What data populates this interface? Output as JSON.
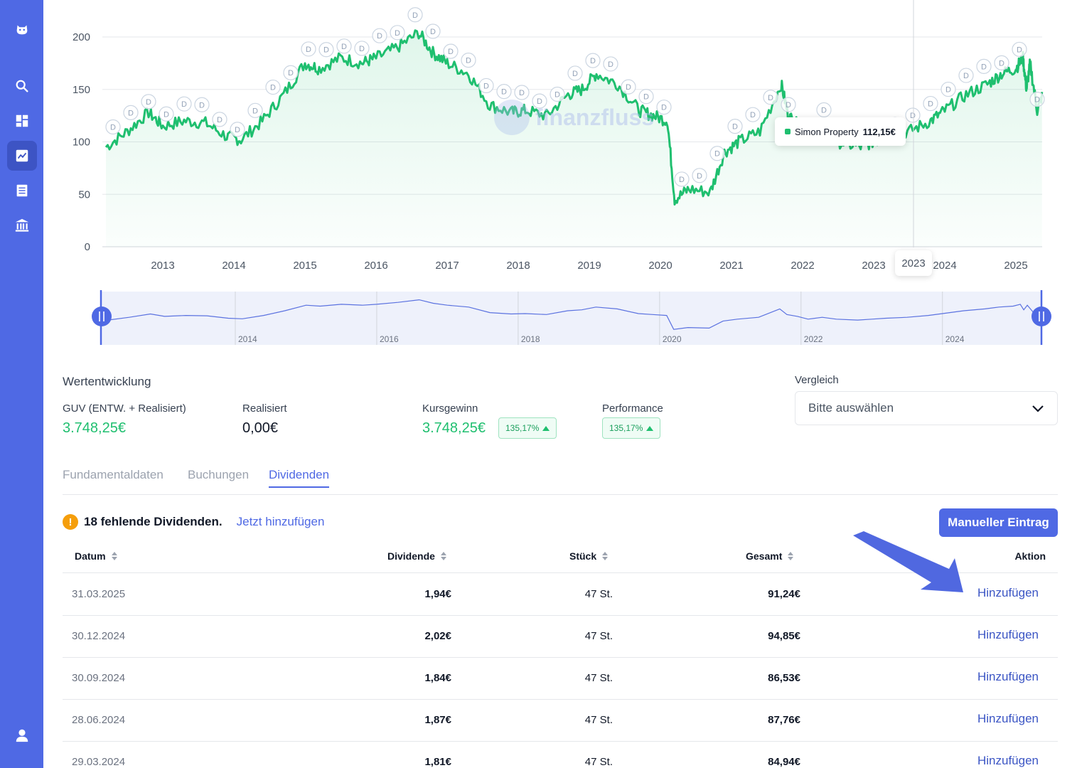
{
  "sidebar": {
    "icons": [
      "logo-icon",
      "search-icon",
      "dashboard-icon",
      "chart-icon",
      "list-icon",
      "bank-icon",
      "user-icon"
    ]
  },
  "chart_data": {
    "type": "line",
    "series": [
      {
        "name": "Simon Property",
        "color": "#1fbf6f"
      }
    ],
    "x": [
      2012.2,
      2012.5,
      2012.8,
      2013.0,
      2013.3,
      2013.6,
      2013.9,
      2014.1,
      2014.4,
      2014.7,
      2015.0,
      2015.2,
      2015.5,
      2015.8,
      2016.0,
      2016.3,
      2016.6,
      2016.8,
      2017.0,
      2017.3,
      2017.6,
      2017.9,
      2018.1,
      2018.4,
      2018.7,
      2018.9,
      2019.1,
      2019.4,
      2019.7,
      2019.9,
      2020.1,
      2020.2,
      2020.4,
      2020.7,
      2020.9,
      2021.1,
      2021.4,
      2021.7,
      2021.8,
      2021.95,
      2022.1,
      2022.3,
      2022.5,
      2022.8,
      2023.0,
      2023.2,
      2023.5,
      2023.8,
      2024.0,
      2024.3,
      2024.6,
      2024.8,
      2025.0,
      2025.1,
      2025.15,
      2025.2,
      2025.3,
      2025.4
    ],
    "values": [
      95,
      110,
      128,
      115,
      120,
      118,
      105,
      102,
      120,
      145,
      175,
      170,
      180,
      175,
      180,
      190,
      204,
      185,
      175,
      165,
      135,
      128,
      130,
      125,
      145,
      150,
      165,
      155,
      130,
      125,
      120,
      45,
      55,
      52,
      90,
      100,
      110,
      155,
      125,
      115,
      100,
      110,
      100,
      95,
      100,
      105,
      110,
      120,
      130,
      145,
      155,
      165,
      170,
      180,
      150,
      175,
      130,
      150
    ],
    "ylim": [
      0,
      210
    ],
    "yticks": [
      "200",
      "150",
      "100",
      "50",
      "0"
    ],
    "xticks": [
      "2013",
      "2014",
      "2015",
      "2016",
      "2017",
      "2018",
      "2019",
      "2020",
      "2021",
      "2022",
      "2023",
      "2024",
      "2025"
    ],
    "hover_x_label": "2023",
    "tooltip": {
      "series": "Simon Property",
      "value": "112,15€"
    },
    "dividend_marker": "D",
    "watermark": "finanzfluss",
    "navigator_ticks": [
      "2014",
      "2016",
      "2018",
      "2020",
      "2022",
      "2024"
    ]
  },
  "summary": {
    "title": "Wertentwicklung",
    "guv_label": "GUV (ENTW. + Realisiert)",
    "guv_value": "3.748,25€",
    "realisiert_label": "Realisiert",
    "realisiert_value": "0,00€",
    "kursgewinn_label": "Kursgewinn",
    "kursgewinn_value": "3.748,25€",
    "kursgewinn_badge": "135,17%",
    "performance_label": "Performance",
    "performance_badge": "135,17%"
  },
  "compare": {
    "label": "Vergleich",
    "placeholder": "Bitte auswählen"
  },
  "tabs": [
    "Fundamentaldaten",
    "Buchungen",
    "Dividenden"
  ],
  "notice": {
    "text": "18 fehlende Dividenden.",
    "link": "Jetzt hinzufügen",
    "button": "Manueller Eintrag"
  },
  "table": {
    "headers": {
      "datum": "Datum",
      "dividende": "Dividende",
      "stueck": "Stück",
      "gesamt": "Gesamt",
      "aktion": "Aktion"
    },
    "rows": [
      {
        "date": "31.03.2025",
        "div": "1,94€",
        "qty": "47 St.",
        "total": "91,24€",
        "action": "Hinzufügen"
      },
      {
        "date": "30.12.2024",
        "div": "2,02€",
        "qty": "47 St.",
        "total": "94,85€",
        "action": "Hinzufügen"
      },
      {
        "date": "30.09.2024",
        "div": "1,84€",
        "qty": "47 St.",
        "total": "86,53€",
        "action": "Hinzufügen"
      },
      {
        "date": "28.06.2024",
        "div": "1,87€",
        "qty": "47 St.",
        "total": "87,76€",
        "action": "Hinzufügen"
      },
      {
        "date": "29.03.2024",
        "div": "1,81€",
        "qty": "47 St.",
        "total": "84,94€",
        "action": "Hinzufügen"
      }
    ]
  }
}
